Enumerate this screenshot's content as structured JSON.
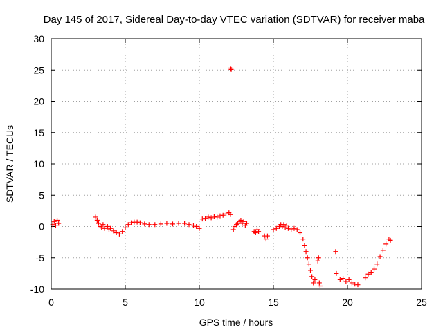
{
  "chart_data": {
    "type": "scatter",
    "title": "Day 145 of 2017, Sidereal Day-to-day VTEC variation (SDTVAR) for receiver maba",
    "xlabel": "GPS time / hours",
    "ylabel": "SDTVAR / TECUs",
    "xlim": [
      0,
      25
    ],
    "ylim": [
      -10,
      30
    ],
    "xticks": [
      0,
      5,
      10,
      15,
      20,
      25
    ],
    "yticks": [
      -10,
      -5,
      0,
      5,
      10,
      15,
      20,
      25,
      30
    ],
    "grid": true,
    "marker": "plus",
    "color": "#ff0000",
    "series": [
      {
        "name": "SDTVAR",
        "points": [
          [
            0.1,
            0.3
          ],
          [
            0.2,
            0.8
          ],
          [
            0.3,
            0.2
          ],
          [
            0.4,
            1.0
          ],
          [
            0.5,
            0.5
          ],
          [
            3.0,
            1.5
          ],
          [
            3.1,
            1.0
          ],
          [
            3.2,
            0.5
          ],
          [
            3.3,
            0.0
          ],
          [
            3.4,
            -0.2
          ],
          [
            3.5,
            0.3
          ],
          [
            3.6,
            -0.3
          ],
          [
            3.8,
            0.0
          ],
          [
            3.9,
            -0.5
          ],
          [
            4.0,
            -0.3
          ],
          [
            4.2,
            -0.7
          ],
          [
            4.4,
            -1.0
          ],
          [
            4.6,
            -1.2
          ],
          [
            4.8,
            -0.8
          ],
          [
            5.0,
            -0.2
          ],
          [
            5.2,
            0.3
          ],
          [
            5.4,
            0.6
          ],
          [
            5.6,
            0.7
          ],
          [
            5.8,
            0.7
          ],
          [
            6.0,
            0.6
          ],
          [
            6.3,
            0.4
          ],
          [
            6.6,
            0.3
          ],
          [
            7.0,
            0.3
          ],
          [
            7.4,
            0.4
          ],
          [
            7.8,
            0.5
          ],
          [
            8.2,
            0.4
          ],
          [
            8.6,
            0.5
          ],
          [
            9.0,
            0.5
          ],
          [
            9.3,
            0.3
          ],
          [
            9.6,
            0.2
          ],
          [
            9.8,
            0.0
          ],
          [
            10.0,
            -0.3
          ],
          [
            10.2,
            1.2
          ],
          [
            10.4,
            1.3
          ],
          [
            10.6,
            1.5
          ],
          [
            10.8,
            1.4
          ],
          [
            11.0,
            1.6
          ],
          [
            11.2,
            1.5
          ],
          [
            11.4,
            1.7
          ],
          [
            11.6,
            1.8
          ],
          [
            11.8,
            2.0
          ],
          [
            12.0,
            2.2
          ],
          [
            12.1,
            1.9
          ],
          [
            12.1,
            25.3
          ],
          [
            12.15,
            25.1
          ],
          [
            12.3,
            -0.5
          ],
          [
            12.4,
            0.0
          ],
          [
            12.5,
            0.3
          ],
          [
            12.6,
            0.5
          ],
          [
            12.7,
            0.8
          ],
          [
            12.8,
            1.0
          ],
          [
            12.9,
            0.5
          ],
          [
            13.0,
            0.8
          ],
          [
            13.1,
            0.2
          ],
          [
            13.2,
            0.5
          ],
          [
            13.7,
            -0.8
          ],
          [
            13.8,
            -1.0
          ],
          [
            13.9,
            -0.5
          ],
          [
            14.0,
            -0.8
          ],
          [
            14.4,
            -1.5
          ],
          [
            14.5,
            -2.0
          ],
          [
            14.6,
            -1.5
          ],
          [
            15.0,
            -0.5
          ],
          [
            15.2,
            -0.3
          ],
          [
            15.4,
            0.0
          ],
          [
            15.5,
            0.3
          ],
          [
            15.6,
            0.0
          ],
          [
            15.7,
            0.3
          ],
          [
            15.8,
            -0.2
          ],
          [
            15.9,
            0.2
          ],
          [
            16.0,
            -0.3
          ],
          [
            16.2,
            -0.5
          ],
          [
            16.4,
            -0.3
          ],
          [
            16.6,
            -0.5
          ],
          [
            16.8,
            -1.0
          ],
          [
            17.0,
            -2.0
          ],
          [
            17.1,
            -3.0
          ],
          [
            17.2,
            -4.0
          ],
          [
            17.3,
            -5.0
          ],
          [
            17.4,
            -6.0
          ],
          [
            17.5,
            -7.0
          ],
          [
            17.6,
            -8.0
          ],
          [
            17.7,
            -9.0
          ],
          [
            17.8,
            -8.5
          ],
          [
            18.0,
            -5.5
          ],
          [
            18.05,
            -5.0
          ],
          [
            18.1,
            -9.0
          ],
          [
            18.15,
            -9.5
          ],
          [
            19.2,
            -4.0
          ],
          [
            19.25,
            -7.5
          ],
          [
            19.5,
            -8.5
          ],
          [
            19.7,
            -8.3
          ],
          [
            19.9,
            -8.8
          ],
          [
            20.1,
            -8.5
          ],
          [
            20.3,
            -9.0
          ],
          [
            20.5,
            -9.2
          ],
          [
            20.7,
            -9.3
          ],
          [
            21.2,
            -8.2
          ],
          [
            21.4,
            -7.6
          ],
          [
            21.6,
            -7.3
          ],
          [
            21.8,
            -6.8
          ],
          [
            22.0,
            -6.0
          ],
          [
            22.2,
            -4.8
          ],
          [
            22.4,
            -3.8
          ],
          [
            22.6,
            -2.8
          ],
          [
            22.8,
            -2.0
          ],
          [
            22.9,
            -2.2
          ]
        ]
      }
    ]
  }
}
